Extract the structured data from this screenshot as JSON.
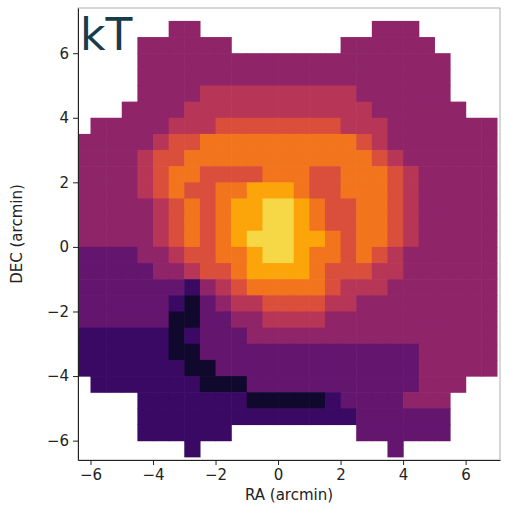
{
  "chart_data": {
    "type": "heatmap",
    "title": "kT",
    "xlabel": "RA (arcmin)",
    "ylabel": "DEC (arcmin)",
    "xlim": [
      -6.4,
      7.1
    ],
    "ylim": [
      -6.6,
      7.4
    ],
    "xticks": [
      {
        "value": -6,
        "label": "−6"
      },
      {
        "value": -4,
        "label": "−4"
      },
      {
        "value": -2,
        "label": "−2"
      },
      0,
      2,
      4,
      6
    ],
    "yticks": [
      {
        "value": -6,
        "label": "−6"
      },
      {
        "value": -4,
        "label": "−4"
      },
      {
        "value": -2,
        "label": "−2"
      },
      0,
      2,
      4,
      6
    ],
    "x": [
      -6.25,
      -5.75,
      -5.25,
      -4.75,
      -4.25,
      -3.75,
      -3.25,
      -2.75,
      -2.25,
      -1.75,
      -1.25,
      -0.75,
      -0.25,
      0.25,
      0.75,
      1.25,
      1.75,
      2.25,
      2.75,
      3.25,
      3.75,
      4.25,
      4.75,
      5.25,
      5.75,
      6.25,
      6.75
    ],
    "y": [
      6.75,
      6.25,
      5.75,
      5.25,
      4.75,
      4.25,
      3.75,
      3.25,
      2.75,
      2.25,
      1.75,
      1.25,
      0.75,
      0.25,
      -0.25,
      -0.75,
      -1.25,
      -1.75,
      -2.25,
      -2.75,
      -3.25,
      -3.75,
      -4.25,
      -4.75,
      -5.25,
      -5.75,
      -6.25
    ],
    "z": [
      [
        null,
        null,
        null,
        null,
        null,
        null,
        4,
        4,
        null,
        null,
        null,
        null,
        null,
        null,
        null,
        null,
        null,
        null,
        null,
        4,
        4,
        4,
        null,
        null,
        null,
        null,
        null
      ],
      [
        null,
        null,
        null,
        null,
        4,
        4,
        4,
        4,
        4,
        4,
        null,
        null,
        null,
        null,
        null,
        null,
        null,
        4,
        4,
        4,
        4,
        4,
        4,
        null,
        null,
        null,
        null
      ],
      [
        null,
        null,
        null,
        null,
        4,
        4,
        4,
        4,
        4,
        4,
        4,
        4,
        4,
        4,
        4,
        4,
        4,
        4,
        4,
        4,
        4,
        4,
        4,
        4,
        null,
        null,
        null
      ],
      [
        null,
        null,
        null,
        null,
        4,
        4,
        4,
        4,
        4,
        4,
        4,
        4,
        4,
        4,
        4,
        4,
        4,
        4,
        4,
        4,
        4,
        4,
        4,
        4,
        null,
        null,
        null
      ],
      [
        null,
        null,
        null,
        null,
        4,
        4,
        4,
        4,
        5,
        5,
        5,
        5,
        5,
        5,
        5,
        5,
        5,
        5,
        4,
        4,
        4,
        4,
        4,
        4,
        null,
        null,
        null
      ],
      [
        null,
        null,
        null,
        4,
        4,
        4,
        4,
        5,
        5,
        5,
        5,
        5,
        5,
        5,
        5,
        5,
        5,
        5,
        5,
        4,
        4,
        4,
        4,
        4,
        4,
        null,
        null
      ],
      [
        null,
        4,
        4,
        4,
        4,
        4,
        5,
        5,
        5,
        6,
        6,
        6,
        6,
        6,
        6,
        6,
        6,
        5,
        5,
        5,
        4,
        4,
        4,
        4,
        4,
        4,
        4
      ],
      [
        4,
        4,
        4,
        4,
        4,
        5,
        6,
        6,
        7,
        7,
        7,
        7,
        7,
        7,
        7,
        7,
        7,
        7,
        6,
        5,
        4,
        4,
        4,
        4,
        4,
        4,
        4
      ],
      [
        4,
        4,
        4,
        4,
        5,
        6,
        6,
        7,
        7,
        7,
        7,
        7,
        7,
        7,
        7,
        7,
        7,
        7,
        7,
        6,
        5,
        4,
        4,
        4,
        4,
        4,
        4
      ],
      [
        4,
        4,
        4,
        4,
        5,
        6,
        7,
        7,
        6,
        6,
        6,
        6,
        7,
        7,
        7,
        6,
        6,
        7,
        7,
        7,
        6,
        5,
        4,
        4,
        4,
        4,
        4
      ],
      [
        4,
        4,
        4,
        4,
        5,
        6,
        7,
        6,
        6,
        7,
        7,
        8,
        8,
        8,
        7,
        6,
        6,
        7,
        7,
        7,
        6,
        5,
        4,
        4,
        4,
        4,
        4
      ],
      [
        4,
        4,
        4,
        4,
        4,
        5,
        6,
        7,
        6,
        7,
        8,
        8,
        9,
        9,
        8,
        7,
        6,
        6,
        7,
        7,
        6,
        5,
        4,
        4,
        4,
        4,
        4
      ],
      [
        4,
        4,
        4,
        4,
        4,
        5,
        6,
        7,
        6,
        7,
        8,
        8,
        9,
        9,
        8,
        7,
        6,
        6,
        7,
        7,
        6,
        5,
        4,
        4,
        4,
        4,
        4
      ],
      [
        4,
        4,
        4,
        4,
        4,
        5,
        6,
        7,
        6,
        7,
        8,
        9,
        9,
        9,
        8,
        8,
        7,
        6,
        7,
        7,
        6,
        5,
        4,
        4,
        4,
        4,
        4
      ],
      [
        3,
        3,
        3,
        3,
        4,
        4,
        5,
        6,
        6,
        7,
        7,
        8,
        9,
        9,
        8,
        7,
        7,
        6,
        7,
        6,
        5,
        4,
        4,
        4,
        4,
        4,
        4
      ],
      [
        3,
        3,
        3,
        3,
        3,
        4,
        4,
        5,
        6,
        6,
        7,
        8,
        8,
        8,
        8,
        7,
        6,
        6,
        6,
        5,
        5,
        4,
        4,
        4,
        4,
        4,
        4
      ],
      [
        3,
        3,
        3,
        3,
        3,
        3,
        3,
        2,
        4,
        5,
        6,
        7,
        7,
        7,
        7,
        7,
        6,
        5,
        5,
        5,
        4,
        4,
        4,
        4,
        4,
        4,
        4
      ],
      [
        3,
        3,
        3,
        3,
        3,
        3,
        2,
        1,
        3,
        4,
        5,
        5,
        6,
        6,
        6,
        6,
        5,
        5,
        4,
        4,
        4,
        4,
        4,
        4,
        4,
        4,
        4
      ],
      [
        3,
        3,
        3,
        3,
        3,
        3,
        1,
        1,
        3,
        3,
        4,
        4,
        5,
        5,
        5,
        5,
        4,
        4,
        4,
        4,
        4,
        4,
        4,
        4,
        4,
        4,
        4
      ],
      [
        2,
        2,
        2,
        2,
        2,
        2,
        1,
        2,
        3,
        3,
        3,
        4,
        4,
        4,
        4,
        4,
        4,
        4,
        4,
        4,
        4,
        4,
        4,
        4,
        4,
        4,
        4
      ],
      [
        2,
        2,
        2,
        2,
        2,
        2,
        1,
        1,
        3,
        3,
        3,
        3,
        3,
        3,
        3,
        3,
        3,
        3,
        3,
        3,
        3,
        3,
        4,
        4,
        4,
        4,
        4
      ],
      [
        2,
        2,
        2,
        2,
        2,
        2,
        2,
        1,
        1,
        3,
        3,
        3,
        3,
        3,
        3,
        3,
        3,
        3,
        3,
        3,
        3,
        3,
        4,
        4,
        4,
        4,
        4
      ],
      [
        null,
        2,
        2,
        2,
        2,
        2,
        2,
        2,
        1,
        1,
        1,
        3,
        3,
        3,
        3,
        3,
        3,
        3,
        3,
        3,
        3,
        3,
        4,
        4,
        4,
        null,
        null
      ],
      [
        null,
        null,
        null,
        null,
        2,
        2,
        2,
        2,
        2,
        2,
        2,
        1,
        1,
        1,
        1,
        1,
        2,
        3,
        3,
        3,
        3,
        4,
        4,
        4,
        null,
        null,
        null
      ],
      [
        null,
        null,
        null,
        null,
        2,
        2,
        2,
        2,
        2,
        2,
        2,
        2,
        2,
        2,
        2,
        2,
        2,
        2,
        3,
        3,
        3,
        3,
        3,
        3,
        null,
        null,
        null
      ],
      [
        null,
        null,
        null,
        null,
        2,
        2,
        2,
        2,
        2,
        2,
        null,
        null,
        null,
        null,
        null,
        null,
        null,
        null,
        3,
        3,
        3,
        3,
        3,
        3,
        null,
        null,
        null
      ],
      [
        null,
        null,
        null,
        null,
        null,
        null,
        null,
        2,
        null,
        null,
        null,
        null,
        null,
        null,
        null,
        null,
        null,
        null,
        null,
        null,
        3,
        null,
        null,
        null,
        null,
        null,
        null
      ]
    ]
  }
}
